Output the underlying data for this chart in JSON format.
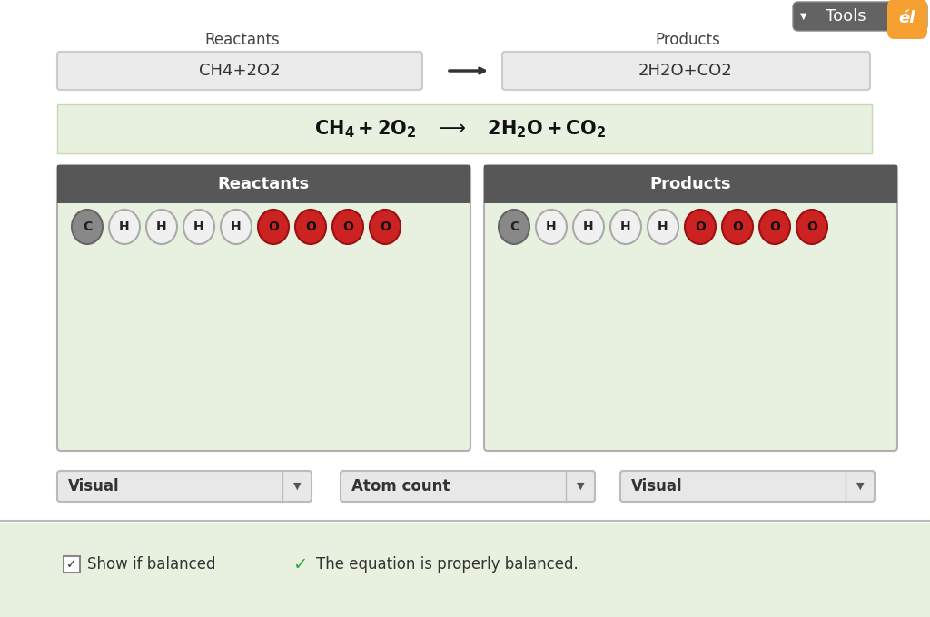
{
  "bg_color": "#f0f0f0",
  "tools_bg": "#666666",
  "tools_text": "Tools",
  "reactants_label": "Reactants",
  "products_label": "Products",
  "reactants_formula": "CH4+2O2",
  "products_formula": "2H2O+CO2",
  "equation_bg": "#e8f0e0",
  "panel_header_color": "#575757",
  "panel_bg": "#e8f0e0",
  "panel_border": "#b0b0b0",
  "reactant_atoms": [
    {
      "label": "C",
      "color": "#888888",
      "text_color": "#222222",
      "edge": "#666666"
    },
    {
      "label": "H",
      "color": "#f0f0f0",
      "text_color": "#222222",
      "edge": "#aaaaaa"
    },
    {
      "label": "H",
      "color": "#f0f0f0",
      "text_color": "#222222",
      "edge": "#aaaaaa"
    },
    {
      "label": "H",
      "color": "#f0f0f0",
      "text_color": "#222222",
      "edge": "#aaaaaa"
    },
    {
      "label": "H",
      "color": "#f0f0f0",
      "text_color": "#222222",
      "edge": "#aaaaaa"
    },
    {
      "label": "O",
      "color": "#cc2222",
      "text_color": "#111111",
      "edge": "#991111"
    },
    {
      "label": "O",
      "color": "#cc2222",
      "text_color": "#111111",
      "edge": "#991111"
    },
    {
      "label": "O",
      "color": "#cc2222",
      "text_color": "#111111",
      "edge": "#991111"
    },
    {
      "label": "O",
      "color": "#cc2222",
      "text_color": "#111111",
      "edge": "#991111"
    }
  ],
  "product_atoms": [
    {
      "label": "C",
      "color": "#888888",
      "text_color": "#222222",
      "edge": "#666666"
    },
    {
      "label": "H",
      "color": "#f0f0f0",
      "text_color": "#222222",
      "edge": "#aaaaaa"
    },
    {
      "label": "H",
      "color": "#f0f0f0",
      "text_color": "#222222",
      "edge": "#aaaaaa"
    },
    {
      "label": "H",
      "color": "#f0f0f0",
      "text_color": "#222222",
      "edge": "#aaaaaa"
    },
    {
      "label": "H",
      "color": "#f0f0f0",
      "text_color": "#222222",
      "edge": "#aaaaaa"
    },
    {
      "label": "O",
      "color": "#cc2222",
      "text_color": "#111111",
      "edge": "#991111"
    },
    {
      "label": "O",
      "color": "#cc2222",
      "text_color": "#111111",
      "edge": "#991111"
    },
    {
      "label": "O",
      "color": "#cc2222",
      "text_color": "#111111",
      "edge": "#991111"
    },
    {
      "label": "O",
      "color": "#cc2222",
      "text_color": "#111111",
      "edge": "#991111"
    }
  ],
  "dropdown1_label": "Visual",
  "dropdown2_label": "Atom count",
  "dropdown3_label": "Visual",
  "show_balanced_text": "Show if balanced",
  "balanced_message": "The equation is properly balanced.",
  "checkmark_color": "#33aa33",
  "orange_color": "#f5a030"
}
